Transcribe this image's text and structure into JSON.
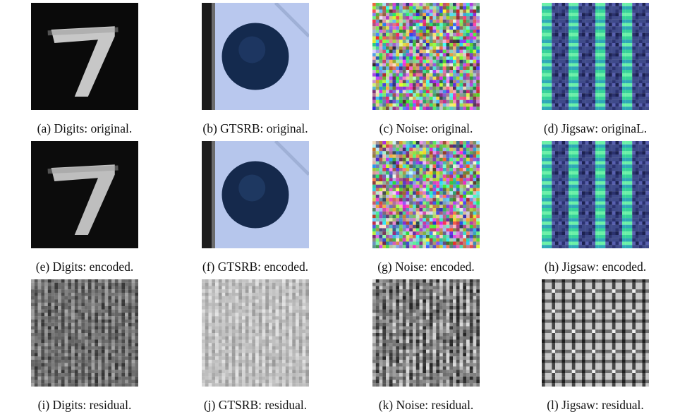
{
  "figure": {
    "panels": [
      {
        "id": "a",
        "caption": "(a) Digits: original.",
        "image": "digit-7-grayscale"
      },
      {
        "id": "b",
        "caption": "(b) GTSRB: original.",
        "image": "traffic-sign-blue-circle"
      },
      {
        "id": "c",
        "caption": "(c) Noise: original.",
        "image": "random-color-noise"
      },
      {
        "id": "d",
        "caption": "(d) Jigsaw: originaL.",
        "image": "jigsaw-plaid-pattern"
      },
      {
        "id": "e",
        "caption": "(e) Digits: encoded.",
        "image": "digit-7-grayscale"
      },
      {
        "id": "f",
        "caption": "(f) GTSRB: encoded.",
        "image": "traffic-sign-blue-circle"
      },
      {
        "id": "g",
        "caption": "(g) Noise: encoded.",
        "image": "random-color-noise"
      },
      {
        "id": "h",
        "caption": "(h) Jigsaw: encoded.",
        "image": "jigsaw-plaid-pattern"
      },
      {
        "id": "i",
        "caption": "(i) Digits: residual.",
        "image": "residual-grayscale-texture"
      },
      {
        "id": "j",
        "caption": "(j) GTSRB: residual.",
        "image": "residual-grayscale-texture"
      },
      {
        "id": "k",
        "caption": "(k) Noise: residual.",
        "image": "residual-grayscale-texture"
      },
      {
        "id": "l",
        "caption": "(l) Jigsaw: residual.",
        "image": "residual-grayscale-texture"
      }
    ]
  }
}
